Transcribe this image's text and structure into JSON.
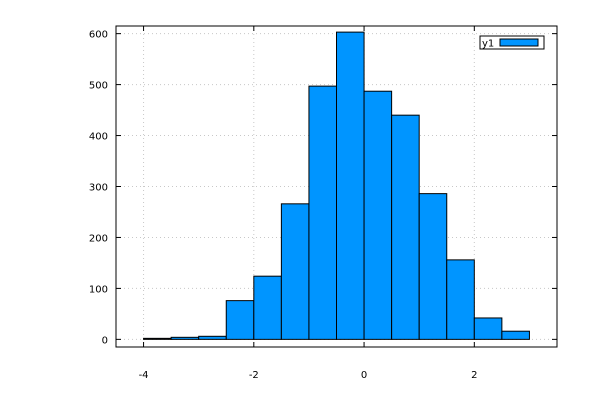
{
  "chart_data": {
    "type": "bar",
    "subtype": "histogram",
    "title": "",
    "xlabel": "",
    "ylabel": "",
    "bin_width": 0.5,
    "x_bins": [
      [
        -4.0,
        -3.5
      ],
      [
        -3.5,
        -3.0
      ],
      [
        -3.0,
        -2.5
      ],
      [
        -2.5,
        -2.0
      ],
      [
        -2.0,
        -1.5
      ],
      [
        -1.5,
        -1.0
      ],
      [
        -1.0,
        -0.5
      ],
      [
        -0.5,
        0.0
      ],
      [
        0.0,
        0.5
      ],
      [
        0.5,
        1.0
      ],
      [
        1.0,
        1.5
      ],
      [
        1.5,
        2.0
      ],
      [
        2.0,
        2.5
      ],
      [
        2.5,
        3.0
      ]
    ],
    "series": [
      {
        "name": "y1",
        "values": [
          2,
          4,
          6,
          76,
          124,
          266,
          497,
          603,
          487,
          440,
          286,
          156,
          42,
          16
        ]
      }
    ],
    "xlim": [
      -4.5,
      3.5
    ],
    "ylim": [
      -15,
      615
    ],
    "xticks": [
      "-4",
      "-2",
      "0",
      "2"
    ],
    "xtick_values": [
      -4,
      -2,
      0,
      2
    ],
    "yticks": [
      "0",
      "100",
      "200",
      "300",
      "400",
      "500",
      "600"
    ],
    "ytick_values": [
      0,
      100,
      200,
      300,
      400,
      500,
      600
    ],
    "grid": true,
    "legend": "top-right",
    "colors": {
      "bar_fill": "#0095ff",
      "bar_stroke": "#000000",
      "grid": "#c8c8c8",
      "axis": "#000000"
    }
  }
}
